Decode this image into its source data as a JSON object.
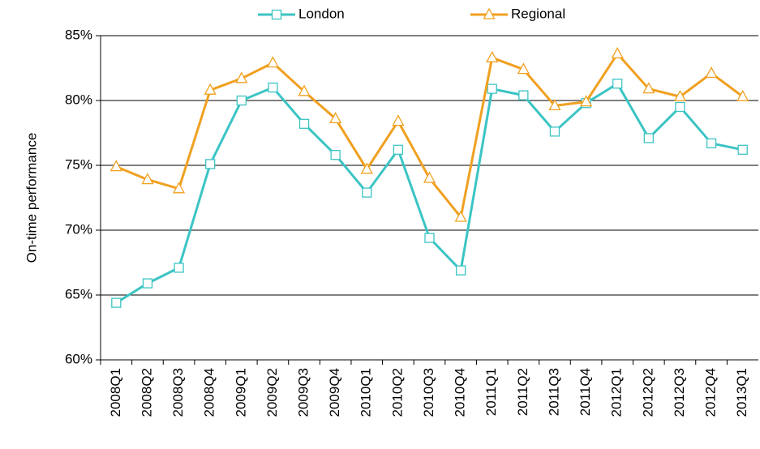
{
  "chart_data": {
    "type": "line",
    "y_label": "On-time performance",
    "categories": [
      "2008Q1",
      "2008Q2",
      "2008Q3",
      "2008Q4",
      "2009Q1",
      "2009Q2",
      "2009Q3",
      "2009Q4",
      "2010Q1",
      "2010Q2",
      "2010Q3",
      "2010Q4",
      "2011Q1",
      "2011Q2",
      "2011Q3",
      "2011Q4",
      "2012Q1",
      "2012Q2",
      "2012Q3",
      "2012Q4",
      "2013Q1"
    ],
    "series": [
      {
        "name": "London",
        "color": "#3cc4c4",
        "marker": "square",
        "values": [
          64.4,
          65.9,
          67.1,
          75.1,
          80.0,
          81.0,
          78.2,
          75.8,
          72.9,
          76.2,
          69.4,
          66.9,
          80.9,
          80.4,
          77.6,
          79.8,
          81.3,
          77.1,
          79.5,
          76.7,
          76.2
        ]
      },
      {
        "name": "Regional",
        "color": "#f0a020",
        "marker": "triangle",
        "values": [
          74.9,
          73.9,
          73.2,
          80.8,
          81.7,
          82.9,
          80.7,
          78.6,
          74.7,
          78.4,
          74.0,
          71.0,
          83.3,
          82.4,
          79.6,
          79.9,
          83.6,
          80.9,
          80.3,
          82.1,
          80.3
        ]
      }
    ],
    "ylim": [
      60,
      85
    ],
    "yticks": [
      {
        "value": 60,
        "label": "60%"
      },
      {
        "value": 65,
        "label": "65%"
      },
      {
        "value": 70,
        "label": "70%"
      },
      {
        "value": 75,
        "label": "75%"
      },
      {
        "value": 80,
        "label": "80%"
      },
      {
        "value": 85,
        "label": "85%"
      }
    ],
    "grid": true,
    "legend": "top"
  }
}
